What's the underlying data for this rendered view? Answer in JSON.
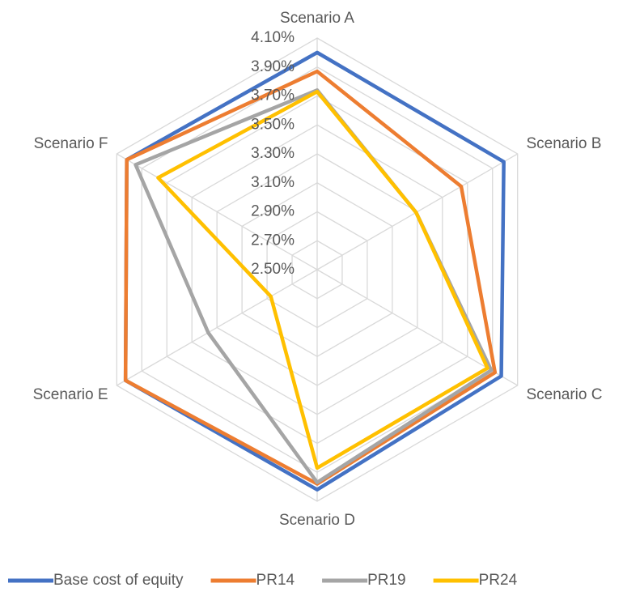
{
  "chart_data": {
    "type": "radar",
    "categories": [
      "Scenario A",
      "Scenario B",
      "Scenario C",
      "Scenario D",
      "Scenario E",
      "Scenario F"
    ],
    "series": [
      {
        "name": "Base cost of equity",
        "color": "#4472c4",
        "values": [
          4.0,
          3.99,
          3.97,
          4.02,
          4.03,
          4.02
        ]
      },
      {
        "name": "PR14",
        "color": "#ed7d31",
        "values": [
          3.87,
          3.65,
          3.92,
          3.98,
          4.03,
          4.02
        ]
      },
      {
        "name": "PR19",
        "color": "#a5a5a5",
        "values": [
          3.74,
          3.29,
          3.89,
          3.97,
          3.37,
          3.95
        ]
      },
      {
        "name": "PR24",
        "color": "#ffc000",
        "values": [
          3.73,
          3.29,
          3.86,
          3.87,
          2.87,
          3.77
        ]
      }
    ],
    "ylim": [
      2.5,
      4.1
    ],
    "yticks": [
      {
        "value": 2.5,
        "label": "2.50%"
      },
      {
        "value": 2.7,
        "label": "2.70%"
      },
      {
        "value": 2.9,
        "label": "2.90%"
      },
      {
        "value": 3.1,
        "label": "3.10%"
      },
      {
        "value": 3.3,
        "label": "3.30%"
      },
      {
        "value": 3.5,
        "label": "3.50%"
      },
      {
        "value": 3.7,
        "label": "3.70%"
      },
      {
        "value": 3.9,
        "label": "3.90%"
      },
      {
        "value": 4.1,
        "label": "4.10%"
      }
    ],
    "grid": true,
    "legend": "bottom"
  }
}
